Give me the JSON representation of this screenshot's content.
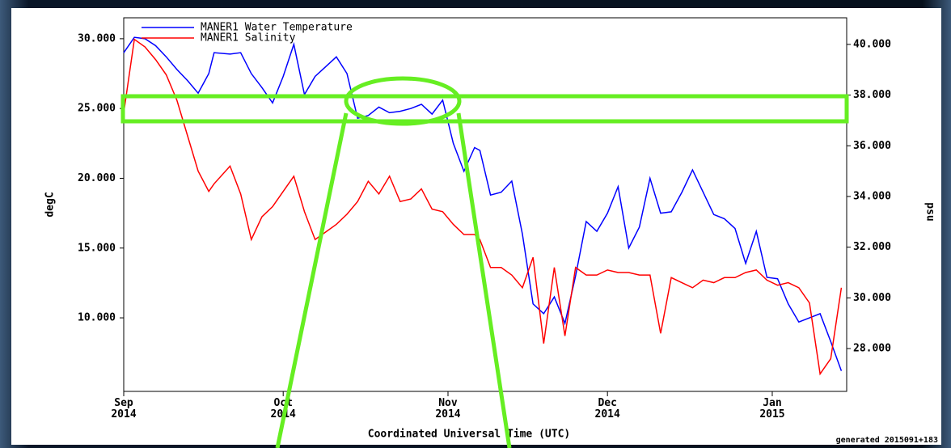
{
  "chart_data": {
    "type": "line",
    "xlabel": "Coordinated Universal Time (UTC)",
    "ylabel": "degC",
    "y2label": "psu",
    "footnote": "generated 2015091+183",
    "xlim": [
      0,
      136
    ],
    "xticks": [
      {
        "value": 0,
        "label": "Sep\n2014"
      },
      {
        "value": 30,
        "label": "Oct\n2014"
      },
      {
        "value": 61,
        "label": "Nov\n2014"
      },
      {
        "value": 91,
        "label": "Dec\n2014"
      },
      {
        "value": 122,
        "label": "Jan\n2015"
      }
    ],
    "ylim": [
      4.73,
      31.5
    ],
    "yticks": [
      {
        "value": 10,
        "label": "10.000"
      },
      {
        "value": 15,
        "label": "15.000"
      },
      {
        "value": 20,
        "label": "20.000"
      },
      {
        "value": 25,
        "label": "25.000"
      },
      {
        "value": 30,
        "label": "30.000"
      }
    ],
    "y2lim": [
      26.31,
      41.05
    ],
    "y2ticks": [
      {
        "value": 28,
        "label": "28.000"
      },
      {
        "value": 30,
        "label": "30.000"
      },
      {
        "value": 32,
        "label": "32.000"
      },
      {
        "value": 34,
        "label": "34.000"
      },
      {
        "value": 36,
        "label": "36.000"
      },
      {
        "value": 38,
        "label": "38.000"
      },
      {
        "value": 40,
        "label": "40.000"
      }
    ],
    "x": [
      0,
      2,
      4,
      6,
      8,
      10,
      12,
      14,
      16,
      17,
      20,
      22,
      24,
      26,
      28,
      30,
      32,
      34,
      36,
      38,
      40,
      42,
      44,
      46,
      48,
      50,
      52,
      54,
      56,
      58,
      60,
      62,
      64,
      66,
      67,
      69,
      71,
      73,
      75,
      77,
      79,
      81,
      83,
      85,
      87,
      89,
      91,
      93,
      95,
      97,
      99,
      101,
      103,
      105,
      107,
      109,
      111,
      113,
      115,
      117,
      119,
      121,
      123,
      125,
      127,
      129,
      131,
      133,
      135
    ],
    "series": [
      {
        "name": "MANER1 Water Temperature",
        "color": "#0000ff",
        "values": [
          29.0,
          30.1,
          30.0,
          29.5,
          28.7,
          27.8,
          27.0,
          26.1,
          27.5,
          29.0,
          28.9,
          29.0,
          27.5,
          26.5,
          25.4,
          27.3,
          29.6,
          26.0,
          27.3,
          28.0,
          28.7,
          27.5,
          24.3,
          24.5,
          25.1,
          24.7,
          24.8,
          25.0,
          25.3,
          24.6,
          25.6,
          22.5,
          20.5,
          22.2,
          22.0,
          18.8,
          19.0,
          19.8,
          16.0,
          11.0,
          10.3,
          11.5,
          9.6,
          13.0,
          16.9,
          16.2,
          17.5,
          19.4,
          15.0,
          16.5,
          20.0,
          17.5,
          17.6,
          19.0,
          20.6,
          19.0,
          17.4,
          17.1,
          16.4,
          13.9,
          16.2,
          12.9,
          12.8,
          11.0,
          9.7,
          10.0,
          10.3,
          8.3,
          6.2
        ]
      },
      {
        "name": "MANER1 Salinity",
        "color": "#ff0000",
        "axis": "y2",
        "values": [
          37.3,
          40.2,
          39.9,
          39.4,
          38.8,
          37.8,
          36.4,
          35.0,
          34.2,
          34.5,
          35.2,
          34.1,
          32.3,
          33.2,
          33.6,
          34.2,
          34.8,
          33.4,
          32.3,
          32.6,
          32.9,
          33.3,
          33.8,
          34.6,
          34.1,
          34.8,
          33.8,
          33.9,
          34.3,
          33.5,
          33.4,
          32.9,
          32.5,
          32.5,
          32.3,
          31.2,
          31.2,
          30.9,
          30.4,
          31.6,
          28.2,
          31.2,
          28.5,
          31.2,
          30.9,
          30.9,
          31.1,
          31.0,
          31.0,
          30.9,
          30.9,
          28.6,
          30.8,
          30.6,
          30.4,
          30.7,
          30.6,
          30.8,
          30.8,
          31.0,
          31.1,
          30.7,
          30.5,
          30.6,
          30.4,
          29.8,
          27.0,
          27.6,
          30.4
        ]
      }
    ]
  }
}
